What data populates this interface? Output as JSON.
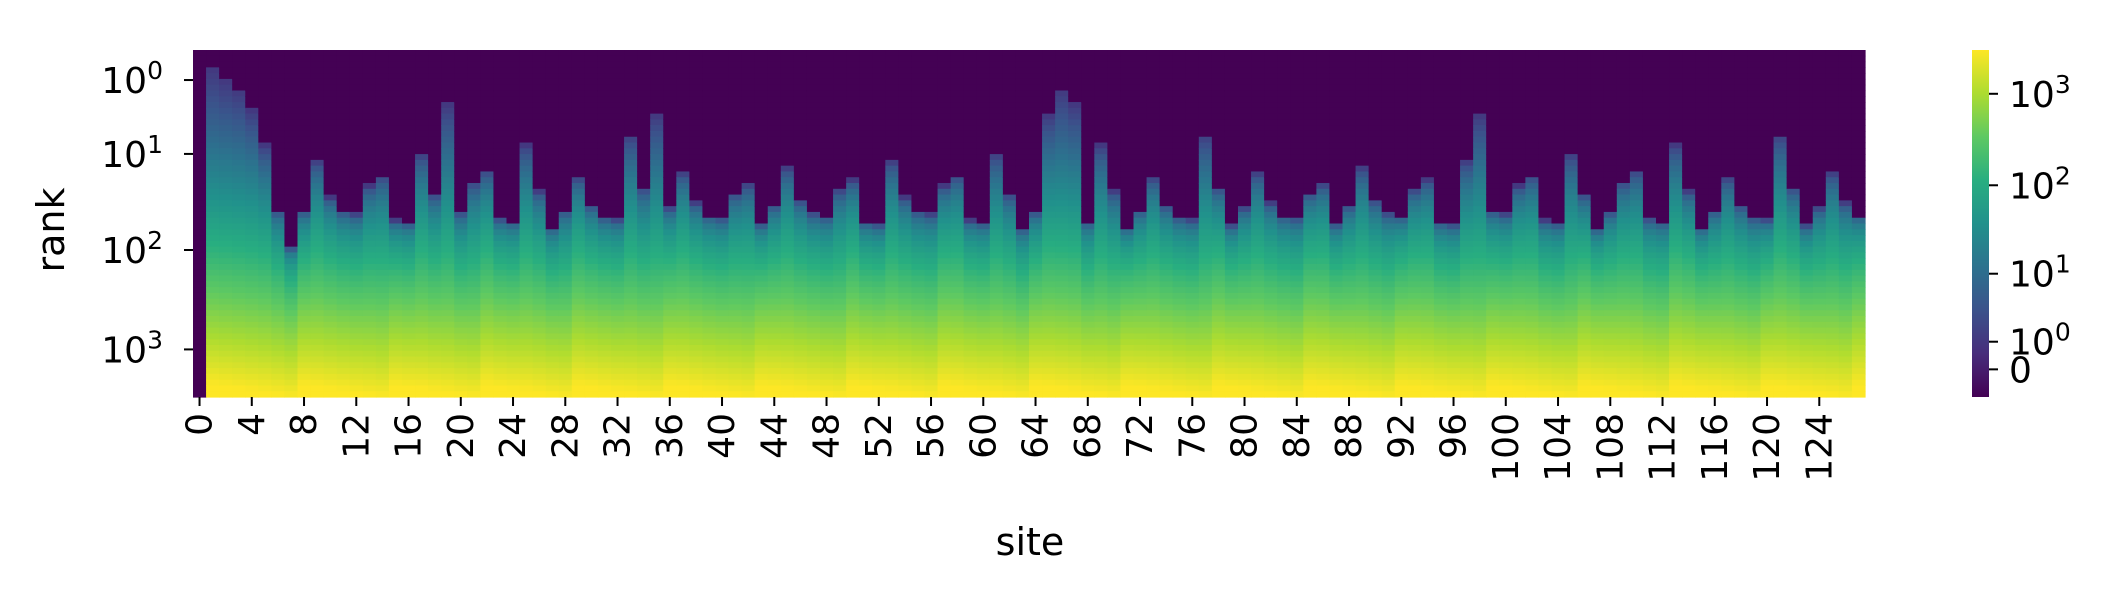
{
  "chart_data": {
    "type": "heatmap",
    "title": "",
    "xlabel": "site",
    "ylabel": "rank",
    "x_tick_labels": [
      "0",
      "4",
      "8",
      "12",
      "16",
      "20",
      "24",
      "28",
      "32",
      "36",
      "40",
      "44",
      "48",
      "52",
      "56",
      "60",
      "64",
      "68",
      "72",
      "76",
      "80",
      "84",
      "88",
      "92",
      "96",
      "100",
      "104",
      "108",
      "112",
      "116",
      "120",
      "124"
    ],
    "x_tick_step": 4,
    "n_sites": 128,
    "y_scale": "symlog",
    "y_ticks": [
      {
        "base": "10",
        "exp": "0",
        "value": 1
      },
      {
        "base": "10",
        "exp": "1",
        "value": 10
      },
      {
        "base": "10",
        "exp": "2",
        "value": 100
      },
      {
        "base": "10",
        "exp": "3",
        "value": 1000
      }
    ],
    "y_range": [
      0,
      3000
    ],
    "colormap": "viridis",
    "colorbar": {
      "scale": "symlog",
      "range": [
        -1,
        3000
      ],
      "ticks": [
        {
          "base": "0",
          "exp": "",
          "value": 0
        },
        {
          "base": "10",
          "exp": "0",
          "value": 1
        },
        {
          "base": "10",
          "exp": "1",
          "value": 10
        },
        {
          "base": "10",
          "exp": "2",
          "value": 100
        },
        {
          "base": "10",
          "exp": "3",
          "value": 1000
        }
      ]
    },
    "description_of_values": "Each site column is a cumulative-count profile over rank: low counts near top ranks, rising to ~3000 at the highest ranks; sites differ in onset rank."
  },
  "colors": {
    "viridis": [
      "#440154",
      "#472d7b",
      "#3b528b",
      "#2c728e",
      "#21918c",
      "#28ae80",
      "#5ec962",
      "#addc30",
      "#fde725"
    ]
  }
}
